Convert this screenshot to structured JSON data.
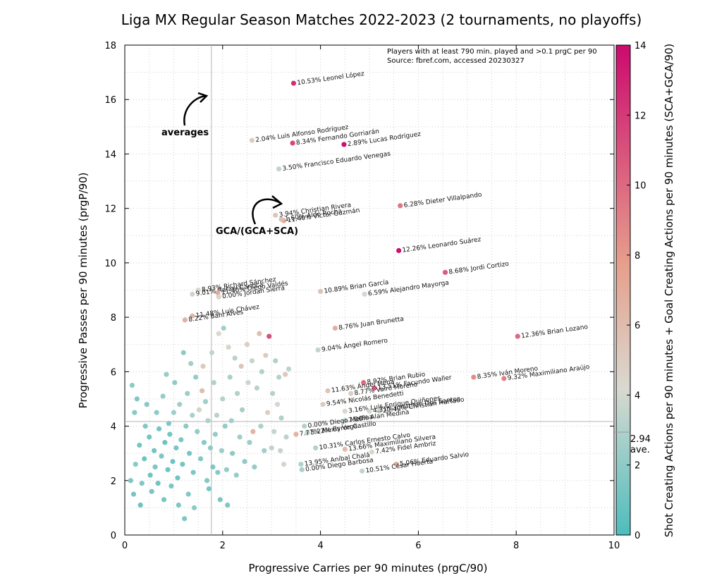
{
  "chart_data": {
    "type": "scatter",
    "title": "Liga MX Regular Season Matches 2022-2023 (2 tournaments, no playoffs)",
    "xlabel": "Progressive Carries per 90 minutes (prgC/90)",
    "ylabel": "Progressive Passes per 90 minutes (prgP/90)",
    "colorbar_label": "Shot Creating Actions per 90 minutes + Goal Creating Actions per 90 minutes (SCA+GCA/90)",
    "xlim": [
      0,
      10
    ],
    "ylim": [
      0,
      18
    ],
    "clim": [
      0,
      14
    ],
    "x_ticks": [
      "0",
      "2",
      "4",
      "6",
      "8",
      "10"
    ],
    "y_ticks": [
      "0",
      "2",
      "4",
      "6",
      "8",
      "10",
      "12",
      "14",
      "16",
      "18"
    ],
    "c_ticks": [
      "0",
      "2",
      "4",
      "6",
      "8",
      "10",
      "12",
      "14"
    ],
    "colormap": [
      "#4dbdbd",
      "#d9d9d0",
      "#e6a08c",
      "#cc0a6e"
    ],
    "averages": {
      "x": 1.77,
      "y": 4.17,
      "c": 2.94,
      "c_label": "2.94",
      "c_sublabel": "ave."
    },
    "notes": [
      "Players with at least 790 min. played and >0.1 prgC per 90",
      "Source: fbref.com, accessed 20230327"
    ],
    "annotations": {
      "averages": "averages",
      "gca_ratio": "GCA/(GCA+SCA)"
    },
    "labeled_points": [
      {
        "label": "10.53% Leonel López",
        "x": 3.45,
        "y": 16.6,
        "c": 12.5
      },
      {
        "label": "2.04% Luis Alfonso Rodríguez",
        "x": 2.6,
        "y": 14.5,
        "c": 5.0
      },
      {
        "label": "8.34% Fernando Gorriarán",
        "x": 3.43,
        "y": 14.4,
        "c": 11.5
      },
      {
        "label": "2.89% Lucas Rodríguez",
        "x": 4.48,
        "y": 14.35,
        "c": 13.8
      },
      {
        "label": "3.50% Francisco Eduardo Venegas",
        "x": 3.15,
        "y": 13.45,
        "c": 3.5
      },
      {
        "label": "3.94% Christian Rivera",
        "x": 3.08,
        "y": 11.75,
        "c": 5.3
      },
      {
        "label": "11.40% Víctor Guzmán",
        "x": 3.25,
        "y": 11.55,
        "c": 7.2
      },
      {
        "label": "1.60% Aldo Rocha",
        "x": 3.2,
        "y": 11.6,
        "c": 5.8
      },
      {
        "label": "6.28% Dieter Villalpando",
        "x": 5.63,
        "y": 12.1,
        "c": 9.5
      },
      {
        "label": "12.26% Leonardo Suárez",
        "x": 5.6,
        "y": 10.45,
        "c": 13.8
      },
      {
        "label": "8.68% Jordi Cortizo",
        "x": 6.55,
        "y": 9.65,
        "c": 10.5
      },
      {
        "label": "8.93% Richard Sánchez",
        "x": 1.5,
        "y": 9.0,
        "c": 4.2
      },
      {
        "label": "9.01% Rafael Carioca",
        "x": 1.38,
        "y": 8.85,
        "c": 3.8
      },
      {
        "label": "11.40% Diego Valdés",
        "x": 1.9,
        "y": 8.9,
        "c": 7.0
      },
      {
        "label": "0.00% Jordan Sierra",
        "x": 1.92,
        "y": 8.75,
        "c": 4.5
      },
      {
        "label": "10.89% Brian García",
        "x": 4.0,
        "y": 8.95,
        "c": 5.6
      },
      {
        "label": "6.59% Alejandro Mayorga",
        "x": 4.9,
        "y": 8.85,
        "c": 4.0
      },
      {
        "label": "11.48% Luis Chávez",
        "x": 1.38,
        "y": 8.05,
        "c": 6.5
      },
      {
        "label": "8.22% Bani Alves",
        "x": 1.23,
        "y": 7.9,
        "c": 6.6
      },
      {
        "label": "8.76% Juan Brunetta",
        "x": 4.3,
        "y": 7.6,
        "c": 6.8
      },
      {
        "label": "12.36% Brian Lozano",
        "x": 8.03,
        "y": 7.3,
        "c": 10.0
      },
      {
        "label": "9.04% Ángel Romero",
        "x": 3.95,
        "y": 6.8,
        "c": 3.5
      },
      {
        "label": "8.35% Iván Moreno",
        "x": 7.13,
        "y": 5.8,
        "c": 8.5
      },
      {
        "label": "9.32% Maximiliano Araújo",
        "x": 7.75,
        "y": 5.75,
        "c": 9.0
      },
      {
        "label": "8.97% Brian Rubio",
        "x": 4.88,
        "y": 5.6,
        "c": 10.0
      },
      {
        "label": "13.51% Facundo Waller",
        "x": 5.1,
        "y": 5.4,
        "c": 11.0
      },
      {
        "label": "11.63% Ángel Mena",
        "x": 4.15,
        "y": 5.3,
        "c": 5.5
      },
      {
        "label": "8.77% Vairo Moreno",
        "x": 4.62,
        "y": 5.2,
        "c": 4.8
      },
      {
        "label": "9.54% Nicolás Benedetti",
        "x": 4.05,
        "y": 4.8,
        "c": 5.2
      },
      {
        "label": "3.16% Luis Enrique Quiñones",
        "x": 4.5,
        "y": 4.55,
        "c": 4.2
      },
      {
        "label": "20.40% Christian Hurtado",
        "x": 5.2,
        "y": 4.55,
        "c": 3.8
      },
      {
        "label": "4.31% Jonathan Dos Santos",
        "x": 5.0,
        "y": 4.55,
        "c": 4.0
      },
      {
        "label": "7.06% Alan Medina",
        "x": 4.5,
        "y": 4.2,
        "c": 3.2
      },
      {
        "label": "0.00% Diego Medina",
        "x": 3.67,
        "y": 4.0,
        "c": 3.0
      },
      {
        "label": "5.22% Byron Castillo",
        "x": 3.73,
        "y": 3.75,
        "c": 3.5
      },
      {
        "label": "7.77% Alexis Vega",
        "x": 3.5,
        "y": 3.7,
        "c": 6.5
      },
      {
        "label": "10.31% Carlos Ernesto Calvo",
        "x": 3.9,
        "y": 3.2,
        "c": 3.0
      },
      {
        "label": "13.66% Maximiliano Silvera",
        "x": 4.5,
        "y": 3.15,
        "c": 6.0
      },
      {
        "label": "7.42% Fidel Ambriz",
        "x": 5.05,
        "y": 3.05,
        "c": 4.5
      },
      {
        "label": "5.06% Eduardo Salvio",
        "x": 5.55,
        "y": 2.6,
        "c": 7.0
      },
      {
        "label": "13.95% Aníbal Chalá",
        "x": 3.6,
        "y": 2.6,
        "c": 3.0
      },
      {
        "label": "0.00% Diego Barbosa",
        "x": 3.62,
        "y": 2.4,
        "c": 2.8
      },
      {
        "label": "10.51% César Huerta",
        "x": 4.85,
        "y": 2.35,
        "c": 3.5
      }
    ],
    "unlabeled_points": [
      {
        "x": 0.12,
        "y": 2.0,
        "c": 1.5
      },
      {
        "x": 0.18,
        "y": 1.5,
        "c": 1.2
      },
      {
        "x": 0.22,
        "y": 2.6,
        "c": 1.8
      },
      {
        "x": 0.2,
        "y": 4.5,
        "c": 1.8
      },
      {
        "x": 0.15,
        "y": 5.5,
        "c": 2.0
      },
      {
        "x": 0.25,
        "y": 5.0,
        "c": 1.5
      },
      {
        "x": 0.3,
        "y": 3.3,
        "c": 1.2
      },
      {
        "x": 0.32,
        "y": 1.1,
        "c": 1.0
      },
      {
        "x": 0.35,
        "y": 1.9,
        "c": 1.5
      },
      {
        "x": 0.4,
        "y": 2.8,
        "c": 1.0
      },
      {
        "x": 0.42,
        "y": 4.0,
        "c": 1.6
      },
      {
        "x": 0.45,
        "y": 4.8,
        "c": 1.8
      },
      {
        "x": 0.5,
        "y": 3.6,
        "c": 1.2
      },
      {
        "x": 0.52,
        "y": 2.2,
        "c": 1.0
      },
      {
        "x": 0.55,
        "y": 1.6,
        "c": 1.3
      },
      {
        "x": 0.6,
        "y": 3.1,
        "c": 1.1
      },
      {
        "x": 0.62,
        "y": 2.5,
        "c": 1.4
      },
      {
        "x": 0.65,
        "y": 4.5,
        "c": 2.0
      },
      {
        "x": 0.68,
        "y": 1.9,
        "c": 1.0
      },
      {
        "x": 0.7,
        "y": 3.9,
        "c": 1.2
      },
      {
        "x": 0.75,
        "y": 2.9,
        "c": 1.5
      },
      {
        "x": 0.78,
        "y": 5.1,
        "c": 2.2
      },
      {
        "x": 0.8,
        "y": 1.3,
        "c": 1.3
      },
      {
        "x": 0.82,
        "y": 3.4,
        "c": 1.0
      },
      {
        "x": 0.85,
        "y": 5.9,
        "c": 2.3
      },
      {
        "x": 0.88,
        "y": 2.4,
        "c": 1.1
      },
      {
        "x": 0.9,
        "y": 4.1,
        "c": 1.5
      },
      {
        "x": 0.92,
        "y": 3.7,
        "c": 1.2
      },
      {
        "x": 0.95,
        "y": 1.8,
        "c": 1.4
      },
      {
        "x": 0.98,
        "y": 2.7,
        "c": 1.0
      },
      {
        "x": 1.0,
        "y": 4.5,
        "c": 2.5
      },
      {
        "x": 1.02,
        "y": 5.6,
        "c": 2.0
      },
      {
        "x": 1.05,
        "y": 3.2,
        "c": 1.3
      },
      {
        "x": 1.08,
        "y": 2.1,
        "c": 1.1
      },
      {
        "x": 1.1,
        "y": 1.1,
        "c": 1.5
      },
      {
        "x": 1.12,
        "y": 4.8,
        "c": 2.6
      },
      {
        "x": 1.15,
        "y": 3.5,
        "c": 1.4
      },
      {
        "x": 1.18,
        "y": 2.6,
        "c": 1.2
      },
      {
        "x": 1.2,
        "y": 6.7,
        "c": 2.0
      },
      {
        "x": 1.22,
        "y": 0.6,
        "c": 1.5
      },
      {
        "x": 1.25,
        "y": 4.0,
        "c": 1.8
      },
      {
        "x": 1.28,
        "y": 5.2,
        "c": 2.4
      },
      {
        "x": 1.3,
        "y": 1.5,
        "c": 1.6
      },
      {
        "x": 1.32,
        "y": 3.0,
        "c": 1.3
      },
      {
        "x": 1.35,
        "y": 6.3,
        "c": 2.6
      },
      {
        "x": 1.38,
        "y": 4.4,
        "c": 2.8
      },
      {
        "x": 1.4,
        "y": 2.3,
        "c": 1.4
      },
      {
        "x": 1.42,
        "y": 1.0,
        "c": 1.9
      },
      {
        "x": 1.45,
        "y": 5.8,
        "c": 2.2
      },
      {
        "x": 1.48,
        "y": 3.8,
        "c": 2.1
      },
      {
        "x": 1.52,
        "y": 4.6,
        "c": 3.8
      },
      {
        "x": 1.55,
        "y": 2.8,
        "c": 1.6
      },
      {
        "x": 1.58,
        "y": 5.3,
        "c": 6.0
      },
      {
        "x": 1.6,
        "y": 6.2,
        "c": 5.2
      },
      {
        "x": 1.62,
        "y": 3.4,
        "c": 1.8
      },
      {
        "x": 1.65,
        "y": 4.9,
        "c": 2.5
      },
      {
        "x": 1.68,
        "y": 2.0,
        "c": 1.7
      },
      {
        "x": 1.7,
        "y": 4.2,
        "c": 2.9
      },
      {
        "x": 1.72,
        "y": 1.7,
        "c": 1.3
      },
      {
        "x": 1.75,
        "y": 3.2,
        "c": 2.0
      },
      {
        "x": 1.78,
        "y": 6.7,
        "c": 3.5
      },
      {
        "x": 1.8,
        "y": 2.5,
        "c": 1.5
      },
      {
        "x": 1.82,
        "y": 5.6,
        "c": 3.0
      },
      {
        "x": 1.85,
        "y": 3.7,
        "c": 2.2
      },
      {
        "x": 1.88,
        "y": 4.4,
        "c": 3.2
      },
      {
        "x": 1.9,
        "y": 2.3,
        "c": 1.8
      },
      {
        "x": 1.92,
        "y": 7.4,
        "c": 4.2
      },
      {
        "x": 1.95,
        "y": 1.3,
        "c": 1.4
      },
      {
        "x": 1.98,
        "y": 3.1,
        "c": 2.4
      },
      {
        "x": 2.0,
        "y": 5.0,
        "c": 3.1
      },
      {
        "x": 2.02,
        "y": 7.6,
        "c": 2.5
      },
      {
        "x": 2.05,
        "y": 4.0,
        "c": 2.1
      },
      {
        "x": 2.08,
        "y": 2.4,
        "c": 2.3
      },
      {
        "x": 2.1,
        "y": 1.1,
        "c": 1.5
      },
      {
        "x": 2.12,
        "y": 6.9,
        "c": 4.5
      },
      {
        "x": 2.15,
        "y": 5.8,
        "c": 2.8
      },
      {
        "x": 2.18,
        "y": 4.2,
        "c": 2.6
      },
      {
        "x": 2.2,
        "y": 3.0,
        "c": 2.0
      },
      {
        "x": 2.25,
        "y": 6.5,
        "c": 3.3
      },
      {
        "x": 2.28,
        "y": 2.2,
        "c": 2.2
      },
      {
        "x": 2.3,
        "y": 5.2,
        "c": 3.0
      },
      {
        "x": 2.35,
        "y": 3.6,
        "c": 2.5
      },
      {
        "x": 2.38,
        "y": 6.2,
        "c": 5.4
      },
      {
        "x": 2.4,
        "y": 4.6,
        "c": 2.7
      },
      {
        "x": 2.45,
        "y": 2.7,
        "c": 2.0
      },
      {
        "x": 2.5,
        "y": 7.0,
        "c": 4.8
      },
      {
        "x": 2.52,
        "y": 5.6,
        "c": 3.8
      },
      {
        "x": 2.55,
        "y": 3.4,
        "c": 2.4
      },
      {
        "x": 2.6,
        "y": 6.4,
        "c": 3.6
      },
      {
        "x": 2.62,
        "y": 3.8,
        "c": 6.5
      },
      {
        "x": 2.65,
        "y": 2.5,
        "c": 2.2
      },
      {
        "x": 2.7,
        "y": 5.4,
        "c": 3.2
      },
      {
        "x": 2.75,
        "y": 7.4,
        "c": 5.8
      },
      {
        "x": 2.78,
        "y": 4.0,
        "c": 2.9
      },
      {
        "x": 2.8,
        "y": 6.0,
        "c": 3.0
      },
      {
        "x": 2.85,
        "y": 3.1,
        "c": 2.6
      },
      {
        "x": 2.88,
        "y": 6.6,
        "c": 5.0
      },
      {
        "x": 2.92,
        "y": 4.5,
        "c": 4.8
      },
      {
        "x": 2.95,
        "y": 7.3,
        "c": 11.0
      },
      {
        "x": 3.0,
        "y": 3.2,
        "c": 3.4
      },
      {
        "x": 3.02,
        "y": 5.2,
        "c": 3.1
      },
      {
        "x": 3.05,
        "y": 3.8,
        "c": 3.5
      },
      {
        "x": 3.08,
        "y": 6.4,
        "c": 3.0
      },
      {
        "x": 3.12,
        "y": 4.8,
        "c": 4.0
      },
      {
        "x": 3.15,
        "y": 5.8,
        "c": 3.2
      },
      {
        "x": 3.18,
        "y": 3.1,
        "c": 3.6
      },
      {
        "x": 3.2,
        "y": 4.3,
        "c": 3.0
      },
      {
        "x": 3.25,
        "y": 2.6,
        "c": 4.5
      },
      {
        "x": 3.28,
        "y": 5.9,
        "c": 5.2
      },
      {
        "x": 3.3,
        "y": 3.6,
        "c": 3.3
      },
      {
        "x": 3.35,
        "y": 6.1,
        "c": 3.4
      }
    ]
  }
}
